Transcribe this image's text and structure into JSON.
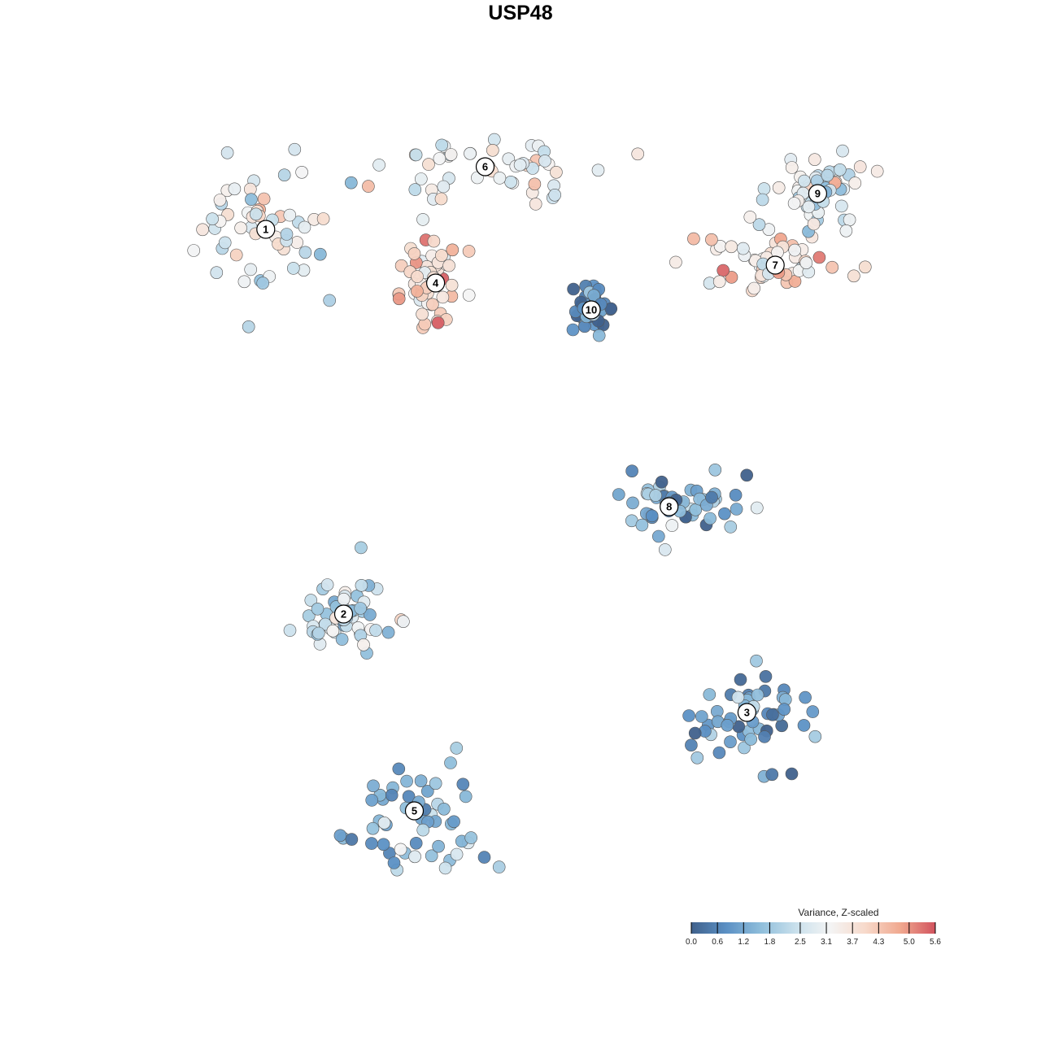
{
  "chart_data": {
    "type": "scatter",
    "title": "USP48",
    "xlabel": "",
    "ylabel": "",
    "grid": false,
    "legend": {
      "title": "Variance, Z-scaled",
      "placement": "bottom-right",
      "ticks": [
        "0.0",
        "0.6",
        "1.2",
        "1.8",
        "2.5",
        "3.1",
        "3.7",
        "4.3",
        "5.0",
        "5.6"
      ],
      "range": [
        0.0,
        5.6
      ],
      "colors": [
        "#40618c",
        "#5b90c4",
        "#8fbedb",
        "#c9e0ec",
        "#f4f4f4",
        "#f7d9ca",
        "#f0a88f",
        "#d2535e"
      ]
    },
    "clusters": [
      {
        "label": "1",
        "x": -3.6,
        "y": 3.1,
        "mean_z": 2.9
      },
      {
        "label": "2",
        "x": -2.5,
        "y": -1.2,
        "mean_z": 2.1
      },
      {
        "label": "3",
        "x": 3.2,
        "y": -2.3,
        "mean_z": 1.2
      },
      {
        "label": "4",
        "x": -1.2,
        "y": 2.5,
        "mean_z": 3.9
      },
      {
        "label": "5",
        "x": -1.5,
        "y": -3.4,
        "mean_z": 1.5
      },
      {
        "label": "6",
        "x": -0.5,
        "y": 3.8,
        "mean_z": 3.0
      },
      {
        "label": "7",
        "x": 3.6,
        "y": 2.7,
        "mean_z": 3.6
      },
      {
        "label": "8",
        "x": 2.1,
        "y": 0.0,
        "mean_z": 1.3
      },
      {
        "label": "9",
        "x": 4.2,
        "y": 3.5,
        "mean_z": 2.8
      },
      {
        "label": "10",
        "x": 1.0,
        "y": 2.2,
        "mean_z": 0.6
      }
    ]
  }
}
